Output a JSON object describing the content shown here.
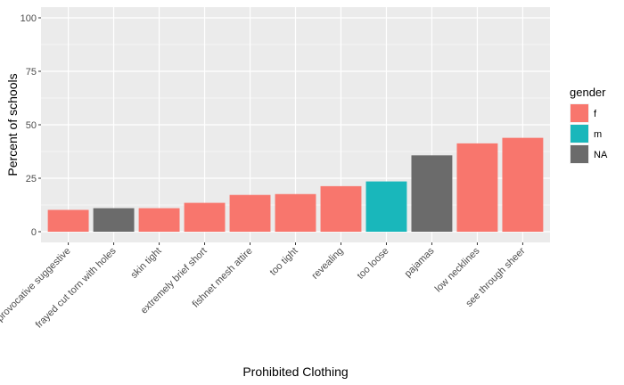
{
  "chart_data": {
    "type": "bar",
    "title": "",
    "xlabel": "Prohibited Clothing",
    "ylabel": "Percent of schools",
    "ylim": [
      0,
      100
    ],
    "yticks": [
      0,
      25,
      50,
      75,
      100
    ],
    "grid": true,
    "legend_position": "right",
    "legend": {
      "title": "gender",
      "entries": [
        {
          "key": "f",
          "label": "f",
          "color": "#F8766D"
        },
        {
          "key": "m",
          "label": "m",
          "color": "#19B7BB"
        },
        {
          "key": "NA",
          "label": "NA",
          "color": "#6B6B6B"
        }
      ]
    },
    "categories": [
      "provocative suggestive",
      "frayed cut torn with holes",
      "skin tight",
      "extremely brief short",
      "fishnet mesh attire",
      "too tight",
      "revealing",
      "too loose",
      "pajamas",
      "low necklines",
      "see through sheer"
    ],
    "values": [
      10.2,
      11.0,
      11.0,
      13.5,
      17.2,
      17.6,
      21.3,
      23.5,
      35.7,
      41.3,
      43.9
    ],
    "groups": [
      "f",
      "NA",
      "f",
      "f",
      "f",
      "f",
      "f",
      "m",
      "NA",
      "f",
      "f"
    ]
  }
}
